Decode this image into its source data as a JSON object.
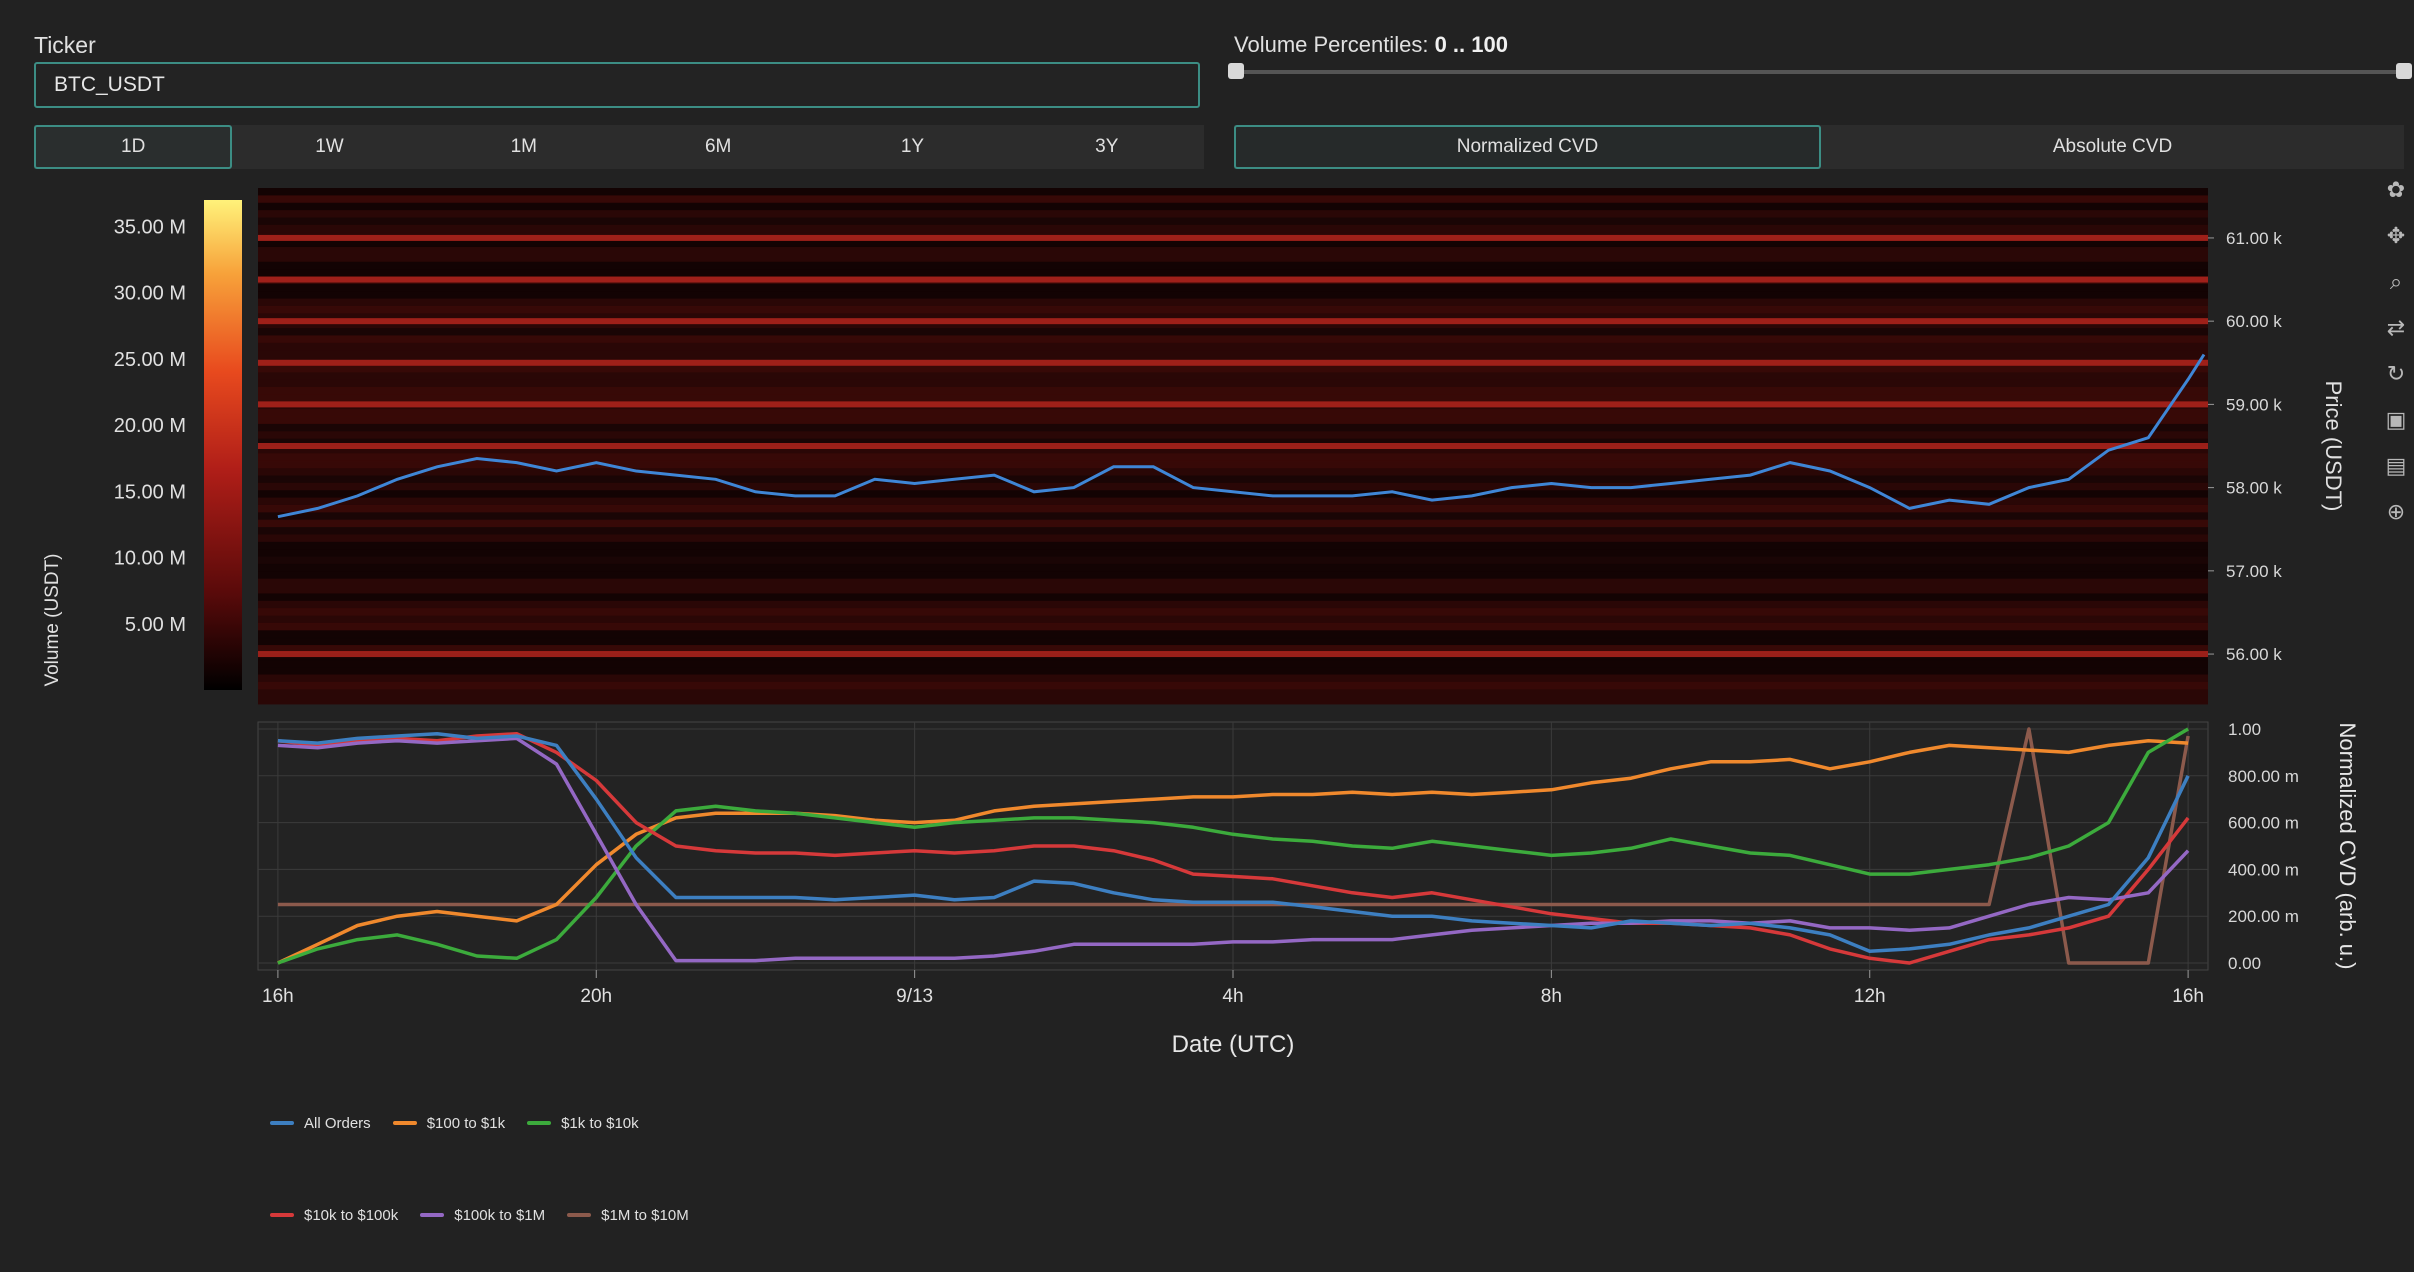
{
  "ticker": {
    "label": "Ticker",
    "value": "BTC_USDT"
  },
  "ranges": [
    "1D",
    "1W",
    "1M",
    "6M",
    "1Y",
    "3Y"
  ],
  "active_range": "1D",
  "volume_percentiles": {
    "label": "Volume Percentiles:",
    "value": "0 .. 100",
    "min": 0,
    "max": 100
  },
  "modes": [
    "Normalized CVD",
    "Absolute CVD"
  ],
  "active_mode": "Normalized CVD",
  "colors": {
    "accent": "#3c8d84",
    "all_orders": "#3d7fc1",
    "100_1k": "#f0892d",
    "1k_10k": "#3cab3c",
    "10k_100k": "#d6393a",
    "100k_1m": "#9468c4",
    "1m_10m": "#8c5a4c",
    "price": "#3f86d6"
  },
  "chart_data": [
    {
      "type": "heatmap",
      "name": "volume-heatmap",
      "colorbar": {
        "title": "Volume (USDT)",
        "ticks": [
          "5.00 M",
          "10.00 M",
          "15.00 M",
          "20.00 M",
          "25.00 M",
          "30.00 M",
          "35.00 M"
        ],
        "tick_values": [
          5,
          10,
          15,
          20,
          25,
          30,
          35
        ],
        "range": [
          0,
          37
        ],
        "colorscale": [
          "#000000",
          "#5a0a0a",
          "#b01e18",
          "#e84a1e",
          "#f7a23a",
          "#fff27a"
        ]
      },
      "ylabel": "Price (USDT)",
      "yticks": [
        "56.00 k",
        "57.00 k",
        "58.00 k",
        "59.00 k",
        "60.00 k",
        "61.00 k"
      ],
      "ytick_values": [
        56000,
        57000,
        58000,
        59000,
        60000,
        61000
      ],
      "ylim": [
        55400,
        61600
      ],
      "bright_levels": [
        61000,
        60500,
        60000,
        59500,
        59000,
        58500,
        56000
      ],
      "price_series": {
        "x": [
          0,
          0.5,
          1,
          1.5,
          2,
          2.5,
          3,
          3.5,
          4,
          4.5,
          5,
          5.5,
          6,
          6.5,
          7,
          7.5,
          8,
          8.5,
          9,
          9.5,
          10,
          10.5,
          11,
          11.5,
          12,
          12.5,
          13,
          13.5,
          14,
          14.5,
          15,
          15.5,
          16,
          16.5,
          17,
          17.5,
          18,
          18.5,
          19,
          19.5,
          20,
          20.5,
          21,
          21.5,
          22,
          22.5,
          23,
          23.5,
          24,
          24.2
        ],
        "y": [
          57650,
          57750,
          57900,
          58100,
          58250,
          58350,
          58300,
          58200,
          58300,
          58200,
          58150,
          58100,
          57950,
          57900,
          57900,
          58100,
          58050,
          58100,
          58150,
          57950,
          58000,
          58250,
          58250,
          58000,
          57950,
          57900,
          57900,
          57900,
          57950,
          57850,
          57900,
          58000,
          58050,
          58000,
          58000,
          58050,
          58100,
          58150,
          58300,
          58200,
          58000,
          57750,
          57850,
          57800,
          58000,
          58100,
          58450,
          58600,
          59300,
          59600
        ]
      }
    },
    {
      "type": "line",
      "name": "normalized-cvd",
      "xlabel": "Date (UTC)",
      "ylabel": "Normalized CVD (arb. u.)",
      "xticks": [
        "16h",
        "20h",
        "9/13",
        "4h",
        "8h",
        "12h",
        "16h"
      ],
      "xtick_values": [
        0,
        4,
        8,
        12,
        16,
        20,
        24
      ],
      "xlim": [
        -0.25,
        24.25
      ],
      "yticks": [
        "0.00",
        "200.00 m",
        "400.00 m",
        "600.00 m",
        "800.00 m",
        "1.00"
      ],
      "ytick_values": [
        0,
        0.2,
        0.4,
        0.6,
        0.8,
        1.0
      ],
      "ylim": [
        -0.03,
        1.03
      ],
      "x": [
        0,
        0.5,
        1,
        1.5,
        2,
        2.5,
        3,
        3.5,
        4,
        4.5,
        5,
        5.5,
        6,
        6.5,
        7,
        7.5,
        8,
        8.5,
        9,
        9.5,
        10,
        10.5,
        11,
        11.5,
        12,
        12.5,
        13,
        13.5,
        14,
        14.5,
        15,
        15.5,
        16,
        16.5,
        17,
        17.5,
        18,
        18.5,
        19,
        19.5,
        20,
        20.5,
        21,
        21.5,
        22,
        22.5,
        23,
        23.5,
        24
      ],
      "series": [
        {
          "name": "All Orders",
          "values": [
            0.95,
            0.94,
            0.96,
            0.97,
            0.98,
            0.96,
            0.97,
            0.93,
            0.7,
            0.45,
            0.28,
            0.28,
            0.28,
            0.28,
            0.27,
            0.28,
            0.29,
            0.27,
            0.28,
            0.35,
            0.34,
            0.3,
            0.27,
            0.26,
            0.26,
            0.26,
            0.24,
            0.22,
            0.2,
            0.2,
            0.18,
            0.17,
            0.16,
            0.15,
            0.18,
            0.17,
            0.16,
            0.17,
            0.15,
            0.12,
            0.05,
            0.06,
            0.08,
            0.12,
            0.15,
            0.2,
            0.25,
            0.45,
            0.8
          ]
        },
        {
          "name": "$100 to $1k",
          "values": [
            0.0,
            0.08,
            0.16,
            0.2,
            0.22,
            0.2,
            0.18,
            0.25,
            0.42,
            0.55,
            0.62,
            0.64,
            0.64,
            0.64,
            0.63,
            0.61,
            0.6,
            0.61,
            0.65,
            0.67,
            0.68,
            0.69,
            0.7,
            0.71,
            0.71,
            0.72,
            0.72,
            0.73,
            0.72,
            0.73,
            0.72,
            0.73,
            0.74,
            0.77,
            0.79,
            0.83,
            0.86,
            0.86,
            0.87,
            0.83,
            0.86,
            0.9,
            0.93,
            0.92,
            0.91,
            0.9,
            0.93,
            0.95,
            0.94
          ]
        },
        {
          "name": "$1k to $10k",
          "values": [
            0.0,
            0.06,
            0.1,
            0.12,
            0.08,
            0.03,
            0.02,
            0.1,
            0.28,
            0.5,
            0.65,
            0.67,
            0.65,
            0.64,
            0.62,
            0.6,
            0.58,
            0.6,
            0.61,
            0.62,
            0.62,
            0.61,
            0.6,
            0.58,
            0.55,
            0.53,
            0.52,
            0.5,
            0.49,
            0.52,
            0.5,
            0.48,
            0.46,
            0.47,
            0.49,
            0.53,
            0.5,
            0.47,
            0.46,
            0.42,
            0.38,
            0.38,
            0.4,
            0.42,
            0.45,
            0.5,
            0.6,
            0.9,
            1.0
          ]
        },
        {
          "name": "$10k to $100k",
          "values": [
            0.95,
            0.93,
            0.95,
            0.96,
            0.95,
            0.97,
            0.98,
            0.9,
            0.78,
            0.6,
            0.5,
            0.48,
            0.47,
            0.47,
            0.46,
            0.47,
            0.48,
            0.47,
            0.48,
            0.5,
            0.5,
            0.48,
            0.44,
            0.38,
            0.37,
            0.36,
            0.33,
            0.3,
            0.28,
            0.3,
            0.27,
            0.24,
            0.21,
            0.19,
            0.17,
            0.17,
            0.16,
            0.15,
            0.12,
            0.06,
            0.02,
            0.0,
            0.05,
            0.1,
            0.12,
            0.15,
            0.2,
            0.4,
            0.62
          ]
        },
        {
          "name": "$100k to $1M",
          "values": [
            0.93,
            0.92,
            0.94,
            0.95,
            0.94,
            0.95,
            0.96,
            0.85,
            0.55,
            0.25,
            0.01,
            0.01,
            0.01,
            0.02,
            0.02,
            0.02,
            0.02,
            0.02,
            0.03,
            0.05,
            0.08,
            0.08,
            0.08,
            0.08,
            0.09,
            0.09,
            0.1,
            0.1,
            0.1,
            0.12,
            0.14,
            0.15,
            0.16,
            0.17,
            0.17,
            0.18,
            0.18,
            0.17,
            0.18,
            0.15,
            0.15,
            0.14,
            0.15,
            0.2,
            0.25,
            0.28,
            0.27,
            0.3,
            0.48
          ]
        },
        {
          "name": "$1M to $10M",
          "values": [
            0.25,
            0.25,
            0.25,
            0.25,
            0.25,
            0.25,
            0.25,
            0.25,
            0.25,
            0.25,
            0.25,
            0.25,
            0.25,
            0.25,
            0.25,
            0.25,
            0.25,
            0.25,
            0.25,
            0.25,
            0.25,
            0.25,
            0.25,
            0.25,
            0.25,
            0.25,
            0.25,
            0.25,
            0.25,
            0.25,
            0.25,
            0.25,
            0.25,
            0.25,
            0.25,
            0.25,
            0.25,
            0.25,
            0.25,
            0.25,
            0.25,
            0.25,
            0.25,
            0.25,
            1.0,
            0.0,
            0.0,
            0.0,
            0.97
          ]
        }
      ],
      "legend": {
        "placement": "bottom-left"
      }
    }
  ]
}
